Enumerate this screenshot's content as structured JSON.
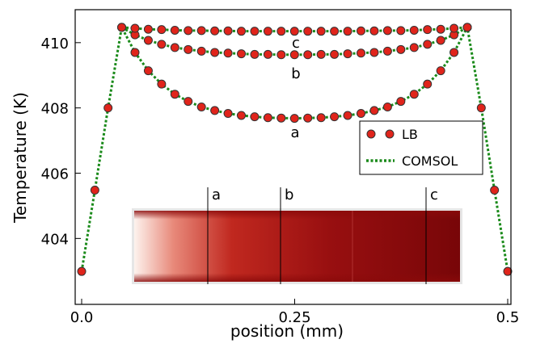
{
  "chart_data": {
    "type": "line",
    "xlabel": "position (mm)",
    "ylabel": "Temperature (K)",
    "xlim": [
      -0.0076,
      0.5038
    ],
    "ylim": [
      401.98,
      411.01
    ],
    "xticks": [
      {
        "value": 0,
        "label": "0.0"
      },
      0.25,
      0.5
    ],
    "yticks": [
      404,
      406,
      408,
      410
    ],
    "legend": [
      {
        "name": "LB",
        "color": "#e0241b"
      },
      {
        "name": "COMSOL",
        "color": "#1a8a1a"
      }
    ],
    "legend_position": "right",
    "x": [
      0,
      0.0155,
      0.031,
      0.047,
      0.0626,
      0.0782,
      0.0938,
      0.1094,
      0.125,
      0.1406,
      0.1562,
      0.1718,
      0.1874,
      0.203,
      0.2186,
      0.2342,
      0.2498,
      0.2654,
      0.281,
      0.2966,
      0.3122,
      0.3278,
      0.3434,
      0.359,
      0.3746,
      0.3902,
      0.4058,
      0.4214,
      0.437,
      0.4526,
      0.469,
      0.4845,
      0.5
    ],
    "series": [
      {
        "label": "a",
        "values": [
          402.99,
          405.48,
          408.0,
          410.47,
          409.7,
          409.14,
          408.73,
          408.42,
          408.2,
          408.03,
          407.92,
          407.83,
          407.77,
          407.73,
          407.7,
          407.69,
          407.68,
          407.69,
          407.7,
          407.73,
          407.77,
          407.83,
          407.92,
          408.03,
          408.2,
          408.42,
          408.73,
          409.14,
          409.7,
          410.47,
          408.0,
          405.48,
          402.99
        ]
      },
      {
        "label": "b",
        "values": [
          null,
          null,
          null,
          410.47,
          410.24,
          410.07,
          409.95,
          409.85,
          409.79,
          409.74,
          409.7,
          409.68,
          409.66,
          409.64,
          409.64,
          409.63,
          409.63,
          409.63,
          409.64,
          409.64,
          409.66,
          409.68,
          409.7,
          409.74,
          409.79,
          409.85,
          409.95,
          410.07,
          410.24,
          410.47,
          null,
          null,
          null
        ]
      },
      {
        "label": "c",
        "values": [
          null,
          null,
          null,
          410.47,
          410.44,
          410.41,
          410.4,
          410.38,
          410.37,
          410.37,
          410.36,
          410.36,
          410.35,
          410.35,
          410.35,
          410.35,
          410.35,
          410.35,
          410.35,
          410.35,
          410.35,
          410.36,
          410.36,
          410.37,
          410.37,
          410.38,
          410.4,
          410.41,
          410.44,
          410.47,
          null,
          null,
          null
        ]
      }
    ]
  }
}
